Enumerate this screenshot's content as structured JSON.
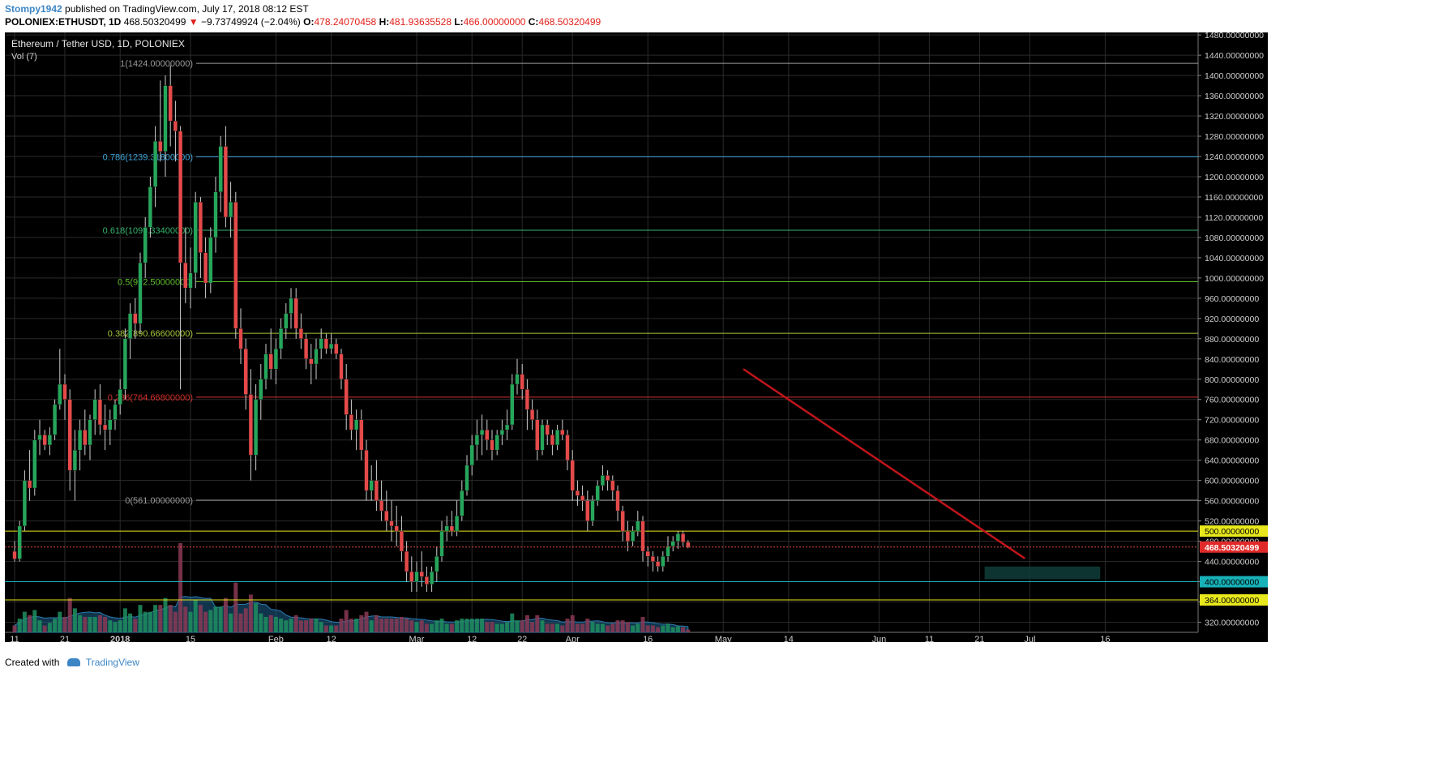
{
  "header": {
    "author": "Stompy1942",
    "published_text": "published on TradingView.com, July 17, 2018 08:12 EST",
    "symbol": "POLONIEX:ETHUSDT, 1D",
    "last": "468.50320499",
    "change_arrow": "▼",
    "change": "−9.73749924 (−2.04%)",
    "o_label": "O:",
    "o_value": "478.24070458",
    "h_label": "H:",
    "h_value": "481.93635528",
    "l_label": "L:",
    "l_value": "466.00000000",
    "c_label": "C:",
    "c_value": "468.50320499"
  },
  "footer": {
    "created_with": "Created with",
    "brand": "TradingView"
  },
  "colors": {
    "up": "#26a65b",
    "down": "#e54a4a",
    "background": "#000000",
    "grid": "#2b2b2b",
    "volume_area": "#1d5e8a",
    "fib_100": "#9b9b9b",
    "fib_786": "#3ea3d6",
    "fib_618": "#36b56e",
    "fib_500": "#5fbf2a",
    "fib_382": "#a6c63a",
    "fib_236": "#d7302a",
    "fib_0": "#9b9b9b",
    "trendline": "#c0151b",
    "support_zone": "#0e3a35"
  },
  "chart_data": {
    "type": "candlestick",
    "title": "Ethereum / Tether USD, 1D, POLONIEX",
    "volume_label": "Vol (7)",
    "ylim": [
      300,
      1485
    ],
    "y_ticks": [
      "320.00000000",
      "360.00000000",
      "400.00000000",
      "440.00000000",
      "480.00000000",
      "520.00000000",
      "560.00000000",
      "600.00000000",
      "640.00000000",
      "680.00000000",
      "720.00000000",
      "760.00000000",
      "800.00000000",
      "840.00000000",
      "880.00000000",
      "920.00000000",
      "960.00000000",
      "1000.00000000",
      "1040.00000000",
      "1080.00000000",
      "1120.00000000",
      "1160.00000000",
      "1200.00000000",
      "1240.00000000",
      "1280.00000000",
      "1320.00000000",
      "1360.00000000",
      "1400.00000000",
      "1440.00000000",
      "1480.00000000"
    ],
    "x_ticks": [
      {
        "label": "11",
        "bold": false,
        "day": 0
      },
      {
        "label": "21",
        "bold": false,
        "day": 10
      },
      {
        "label": "2018",
        "bold": true,
        "day": 21
      },
      {
        "label": "15",
        "bold": false,
        "day": 35
      },
      {
        "label": "Feb",
        "bold": false,
        "day": 52
      },
      {
        "label": "12",
        "bold": false,
        "day": 63
      },
      {
        "label": "Mar",
        "bold": false,
        "day": 80
      },
      {
        "label": "12",
        "bold": false,
        "day": 91
      },
      {
        "label": "22",
        "bold": false,
        "day": 101
      },
      {
        "label": "Apr",
        "bold": false,
        "day": 111
      },
      {
        "label": "16",
        "bold": false,
        "day": 126
      },
      {
        "label": "May",
        "bold": false,
        "day": 141
      },
      {
        "label": "14",
        "bold": false,
        "day": 154
      },
      {
        "label": "Jun",
        "bold": false,
        "day": 172
      },
      {
        "label": "11",
        "bold": false,
        "day": 182
      },
      {
        "label": "21",
        "bold": false,
        "day": 192
      },
      {
        "label": "Jul",
        "bold": false,
        "day": 202
      },
      {
        "label": "16",
        "bold": false,
        "day": 217
      }
    ],
    "fib_levels": [
      {
        "ratio": "1",
        "label": "1(1424.00000000)",
        "price": 1424,
        "color_key": "fib_100"
      },
      {
        "ratio": "0.786",
        "label": "0.786(1239.31800000)",
        "price": 1239.318,
        "color_key": "fib_786"
      },
      {
        "ratio": "0.618",
        "label": "0.618(1094.33400000)",
        "price": 1094.334,
        "color_key": "fib_618"
      },
      {
        "ratio": "0.5",
        "label": "0.5(992.50000000)",
        "price": 992.5,
        "color_key": "fib_500"
      },
      {
        "ratio": "0.382",
        "label": "0.382(890.66600000)",
        "price": 890.666,
        "color_key": "fib_382"
      },
      {
        "ratio": "0.236",
        "label": "0.236(764.66800000)",
        "price": 764.668,
        "color_key": "fib_236"
      },
      {
        "ratio": "0",
        "label": "0(561.00000000)",
        "price": 561,
        "color_key": "fib_0"
      }
    ],
    "horizontal_levels": [
      {
        "price": 500,
        "label": "500.00000000",
        "color": "#e8e81c"
      },
      {
        "price": 400,
        "label": "400.00000000",
        "color": "#17b2b7"
      },
      {
        "price": 364,
        "label": "364.00000000",
        "color": "#e8e81c"
      }
    ],
    "last_price": {
      "price": 468.5032,
      "label": "468.50320499"
    },
    "trendline": {
      "start": {
        "day": 145,
        "price": 820
      },
      "end": {
        "day": 201,
        "price": 446
      }
    },
    "support_zone": {
      "start_day": 193,
      "end_day": 216,
      "low": 405,
      "high": 430
    },
    "ohlc": [
      [
        460,
        480,
        440,
        445
      ],
      [
        445,
        520,
        440,
        510
      ],
      [
        510,
        620,
        500,
        600
      ],
      [
        600,
        660,
        560,
        585
      ],
      [
        585,
        700,
        570,
        680
      ],
      [
        680,
        720,
        650,
        690
      ],
      [
        690,
        700,
        660,
        670
      ],
      [
        670,
        705,
        650,
        690
      ],
      [
        690,
        760,
        680,
        750
      ],
      [
        750,
        860,
        740,
        790
      ],
      [
        790,
        810,
        720,
        760
      ],
      [
        760,
        780,
        580,
        620
      ],
      [
        620,
        700,
        560,
        660
      ],
      [
        660,
        720,
        620,
        700
      ],
      [
        700,
        740,
        650,
        670
      ],
      [
        670,
        730,
        640,
        720
      ],
      [
        720,
        780,
        690,
        760
      ],
      [
        760,
        790,
        690,
        710
      ],
      [
        710,
        750,
        660,
        700
      ],
      [
        700,
        740,
        670,
        720
      ],
      [
        720,
        760,
        700,
        750
      ],
      [
        750,
        800,
        730,
        780
      ],
      [
        780,
        900,
        760,
        880
      ],
      [
        880,
        950,
        840,
        930
      ],
      [
        930,
        960,
        880,
        910
      ],
      [
        910,
        1050,
        890,
        1030
      ],
      [
        1030,
        1120,
        1000,
        1100
      ],
      [
        1100,
        1200,
        1080,
        1180
      ],
      [
        1180,
        1300,
        1140,
        1270
      ],
      [
        1270,
        1390,
        1230,
        1250
      ],
      [
        1250,
        1400,
        1200,
        1380
      ],
      [
        1380,
        1420,
        1260,
        1310
      ],
      [
        1310,
        1350,
        1230,
        1290
      ],
      [
        1290,
        1300,
        780,
        1030
      ],
      [
        1030,
        1100,
        950,
        980
      ],
      [
        980,
        1060,
        940,
        1010
      ],
      [
        1010,
        1170,
        980,
        1150
      ],
      [
        1150,
        1160,
        1000,
        1050
      ],
      [
        1050,
        1080,
        960,
        990
      ],
      [
        990,
        1100,
        970,
        1080
      ],
      [
        1080,
        1200,
        1050,
        1170
      ],
      [
        1170,
        1280,
        1130,
        1260
      ],
      [
        1260,
        1300,
        1100,
        1120
      ],
      [
        1120,
        1190,
        1080,
        1150
      ],
      [
        1150,
        1170,
        880,
        900
      ],
      [
        900,
        940,
        830,
        860
      ],
      [
        860,
        880,
        740,
        770
      ],
      [
        770,
        820,
        600,
        650
      ],
      [
        650,
        790,
        620,
        760
      ],
      [
        760,
        830,
        720,
        800
      ],
      [
        800,
        870,
        780,
        850
      ],
      [
        850,
        900,
        800,
        820
      ],
      [
        820,
        880,
        790,
        860
      ],
      [
        860,
        920,
        840,
        900
      ],
      [
        900,
        950,
        880,
        930
      ],
      [
        930,
        980,
        900,
        960
      ],
      [
        960,
        980,
        880,
        900
      ],
      [
        900,
        930,
        860,
        880
      ],
      [
        880,
        890,
        820,
        840
      ],
      [
        840,
        870,
        790,
        830
      ],
      [
        830,
        880,
        800,
        860
      ],
      [
        860,
        900,
        840,
        880
      ],
      [
        880,
        890,
        850,
        860
      ],
      [
        860,
        890,
        850,
        870
      ],
      [
        870,
        880,
        840,
        850
      ],
      [
        850,
        860,
        780,
        800
      ],
      [
        800,
        830,
        700,
        730
      ],
      [
        730,
        760,
        680,
        700
      ],
      [
        700,
        740,
        660,
        720
      ],
      [
        720,
        740,
        640,
        660
      ],
      [
        660,
        680,
        560,
        580
      ],
      [
        580,
        630,
        560,
        600
      ],
      [
        600,
        640,
        540,
        560
      ],
      [
        560,
        600,
        520,
        540
      ],
      [
        540,
        580,
        500,
        520
      ],
      [
        520,
        560,
        480,
        510
      ],
      [
        510,
        550,
        470,
        500
      ],
      [
        500,
        530,
        440,
        460
      ],
      [
        460,
        480,
        400,
        420
      ],
      [
        420,
        450,
        380,
        400
      ],
      [
        400,
        440,
        380,
        420
      ],
      [
        420,
        460,
        390,
        410
      ],
      [
        410,
        430,
        380,
        395
      ],
      [
        395,
        430,
        380,
        420
      ],
      [
        420,
        470,
        400,
        450
      ],
      [
        450,
        520,
        440,
        500
      ],
      [
        500,
        530,
        480,
        510
      ],
      [
        510,
        540,
        490,
        500
      ],
      [
        500,
        560,
        490,
        530
      ],
      [
        530,
        600,
        520,
        580
      ],
      [
        580,
        650,
        570,
        630
      ],
      [
        630,
        690,
        610,
        670
      ],
      [
        670,
        720,
        640,
        690
      ],
      [
        690,
        730,
        650,
        700
      ],
      [
        700,
        720,
        660,
        680
      ],
      [
        680,
        700,
        640,
        660
      ],
      [
        660,
        700,
        650,
        690
      ],
      [
        690,
        720,
        670,
        700
      ],
      [
        700,
        740,
        680,
        710
      ],
      [
        710,
        810,
        700,
        790
      ],
      [
        790,
        840,
        770,
        810
      ],
      [
        810,
        830,
        760,
        780
      ],
      [
        780,
        800,
        700,
        740
      ],
      [
        740,
        760,
        700,
        720
      ],
      [
        720,
        740,
        640,
        660
      ],
      [
        660,
        720,
        650,
        710
      ],
      [
        710,
        720,
        670,
        690
      ],
      [
        690,
        700,
        650,
        670
      ],
      [
        670,
        710,
        660,
        700
      ],
      [
        700,
        720,
        680,
        690
      ],
      [
        690,
        700,
        620,
        640
      ],
      [
        640,
        660,
        560,
        580
      ],
      [
        580,
        600,
        550,
        570
      ],
      [
        570,
        590,
        540,
        560
      ],
      [
        560,
        580,
        500,
        520
      ],
      [
        520,
        570,
        510,
        560
      ],
      [
        560,
        600,
        550,
        590
      ],
      [
        590,
        630,
        580,
        610
      ],
      [
        610,
        620,
        580,
        600
      ],
      [
        600,
        610,
        560,
        580
      ],
      [
        580,
        590,
        520,
        540
      ],
      [
        540,
        550,
        480,
        500
      ],
      [
        500,
        520,
        460,
        480
      ],
      [
        480,
        510,
        470,
        500
      ],
      [
        500,
        540,
        490,
        520
      ],
      [
        520,
        530,
        440,
        460
      ],
      [
        460,
        470,
        430,
        450
      ],
      [
        450,
        460,
        420,
        440
      ],
      [
        440,
        450,
        420,
        430
      ],
      [
        430,
        460,
        420,
        450
      ],
      [
        450,
        490,
        440,
        470
      ],
      [
        470,
        490,
        460,
        480
      ],
      [
        480,
        500,
        465,
        495
      ],
      [
        495,
        500,
        470,
        478
      ],
      [
        478,
        482,
        466,
        468.5
      ]
    ]
  }
}
